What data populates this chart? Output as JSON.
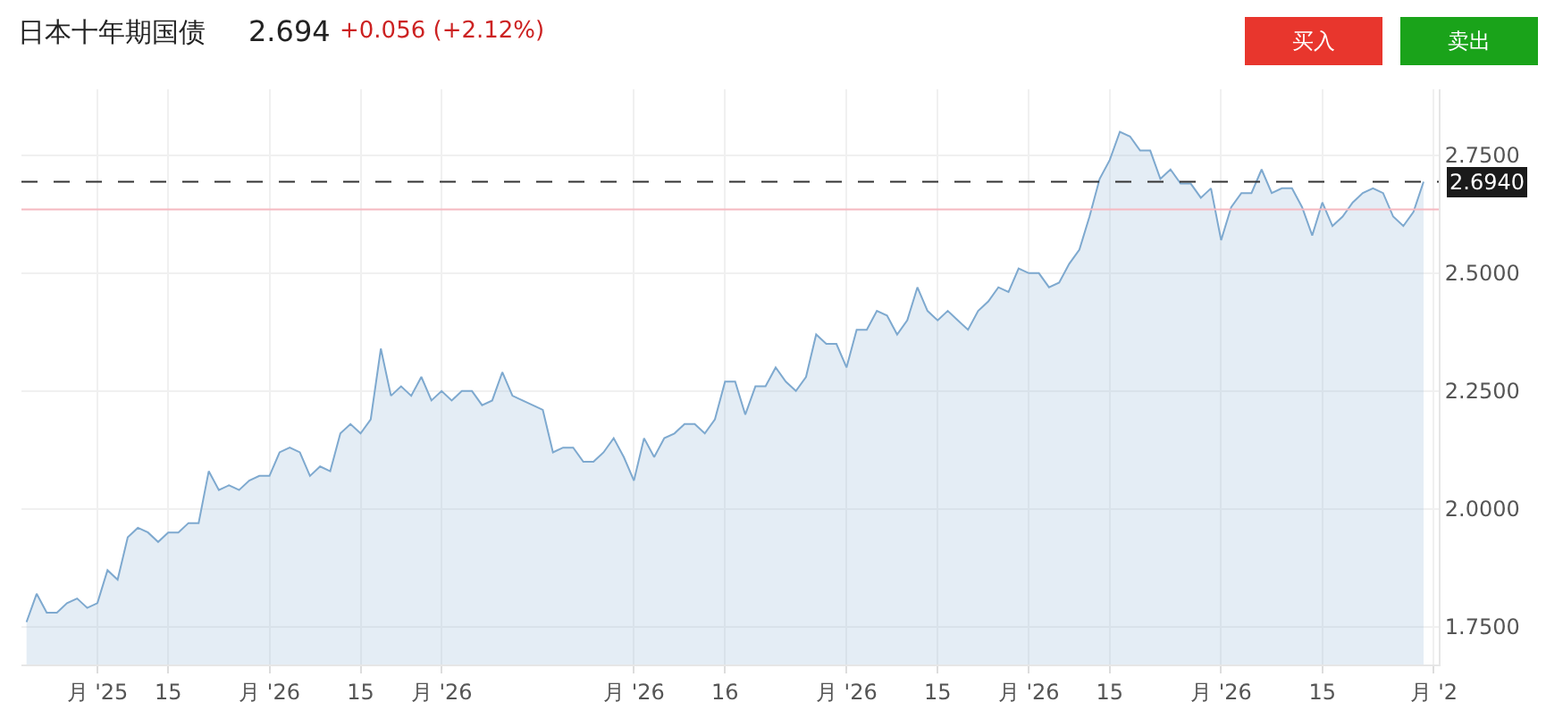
{
  "chart_data": {
    "type": "area",
    "title": "日本十年期国债",
    "annotations": [
      "2.694",
      "+0.056 (+2.12%)",
      "买入",
      "卖出"
    ],
    "categories": [
      null,
      null,
      null,
      null,
      null,
      null,
      null,
      "月 '25",
      null,
      null,
      null,
      null,
      null,
      null,
      "15",
      null,
      null,
      null,
      null,
      null,
      null,
      null,
      null,
      null,
      "月 '26",
      null,
      null,
      null,
      null,
      null,
      null,
      null,
      null,
      "15",
      null,
      null,
      null,
      null,
      null,
      null,
      null,
      "月 '26",
      null,
      null,
      null,
      null,
      null,
      null,
      null,
      null,
      null,
      null,
      null,
      null,
      null,
      null,
      null,
      null,
      null,
      null,
      "月 '26",
      null,
      null,
      null,
      null,
      null,
      null,
      null,
      null,
      "16",
      null,
      null,
      null,
      null,
      null,
      null,
      null,
      null,
      null,
      null,
      null,
      "月 '26",
      null,
      null,
      null,
      null,
      null,
      null,
      null,
      null,
      "15",
      null,
      null,
      null,
      null,
      null,
      null,
      null,
      null,
      "月 '26",
      null,
      null,
      null,
      null,
      null,
      null,
      null,
      "15",
      null,
      null,
      null,
      null,
      null,
      null,
      null,
      null,
      null,
      null,
      "月 '26",
      null,
      null,
      null,
      null,
      null,
      null,
      null,
      null,
      null,
      "15",
      null,
      null,
      null,
      null,
      null,
      null,
      null,
      null,
      null,
      null,
      "月 '2"
    ],
    "series": [
      {
        "color": "#7ea9cf",
        "values": [
          1.76,
          1.82,
          1.78,
          1.78,
          1.8,
          1.81,
          1.79,
          1.8,
          1.87,
          1.85,
          1.94,
          1.96,
          1.95,
          1.93,
          1.95,
          1.95,
          1.97,
          1.97,
          2.08,
          2.04,
          2.05,
          2.04,
          2.06,
          2.07,
          2.07,
          2.12,
          2.13,
          2.12,
          2.07,
          2.09,
          2.08,
          2.16,
          2.18,
          2.16,
          2.19,
          2.34,
          2.24,
          2.26,
          2.24,
          2.28,
          2.23,
          2.25,
          2.23,
          2.25,
          2.25,
          2.22,
          2.23,
          2.29,
          2.24,
          2.23,
          2.22,
          2.21,
          2.12,
          2.13,
          2.13,
          2.1,
          2.1,
          2.12,
          2.15,
          2.11,
          2.06,
          2.15,
          2.11,
          2.15,
          2.16,
          2.18,
          2.18,
          2.16,
          2.19,
          2.27,
          2.27,
          2.2,
          2.26,
          2.26,
          2.3,
          2.27,
          2.25,
          2.28,
          2.37,
          2.35,
          2.35,
          2.3,
          2.38,
          2.38,
          2.42,
          2.41,
          2.37,
          2.4,
          2.47,
          2.42,
          2.4,
          2.42,
          2.4,
          2.38,
          2.42,
          2.44,
          2.47,
          2.46,
          2.51,
          2.5,
          2.5,
          2.47,
          2.48,
          2.52,
          2.55,
          2.62,
          2.7,
          2.74,
          2.8,
          2.79,
          2.76,
          2.76,
          2.7,
          2.72,
          2.69,
          2.69,
          2.66,
          2.68,
          2.57,
          2.64,
          2.67,
          2.67,
          2.72,
          2.67,
          2.68,
          2.68,
          2.64,
          2.58,
          2.65,
          2.6,
          2.62,
          2.65,
          2.67,
          2.68,
          2.67,
          2.62,
          2.6,
          2.63,
          2.694,
          null
        ]
      }
    ],
    "ylim": [
      1.67,
      2.89
    ],
    "yticks": [
      {
        "value": 1.75,
        "label": "1.7500"
      },
      {
        "value": 2.0,
        "label": "2.0000"
      },
      {
        "value": 2.25,
        "label": "2.2500"
      },
      {
        "value": 2.5,
        "label": "2.5000"
      },
      {
        "value": 2.75,
        "label": "2.7500"
      }
    ],
    "ref_lines": [
      {
        "axis": "y",
        "value": 2.694,
        "label": "2.6940",
        "color": "#333333",
        "line_style": "dashed"
      },
      {
        "axis": "y",
        "value": 2.635,
        "color": "#f5b8c0",
        "line_style": "solid"
      }
    ],
    "grid": true
  }
}
